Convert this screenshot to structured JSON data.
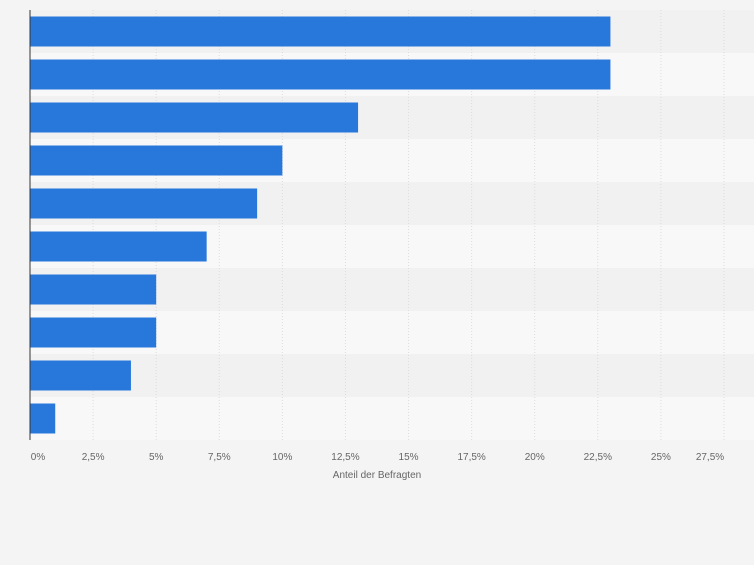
{
  "chart_data": {
    "type": "bar",
    "orientation": "horizontal",
    "categories": [
      "",
      "",
      "",
      "",
      "",
      "",
      "",
      "",
      "",
      ""
    ],
    "values": [
      23,
      23,
      13,
      10,
      9,
      7,
      5,
      5,
      4,
      1
    ],
    "xlabel": "Anteil der Befragten",
    "ylabel": "",
    "xlim": [
      0,
      27.5
    ],
    "x_ticks": [
      "0%",
      "2,5%",
      "5%",
      "7,5%",
      "10%",
      "12,5%",
      "15%",
      "17,5%",
      "20%",
      "22,5%",
      "25%",
      "27,5%"
    ],
    "grid": true,
    "colors": {
      "bar": "#2878dc",
      "band_dark": "#f1f1f2",
      "band_light": "#f8f8f9",
      "grid": "#dcdcdc",
      "axis": "#333333",
      "text": "#666666"
    }
  }
}
